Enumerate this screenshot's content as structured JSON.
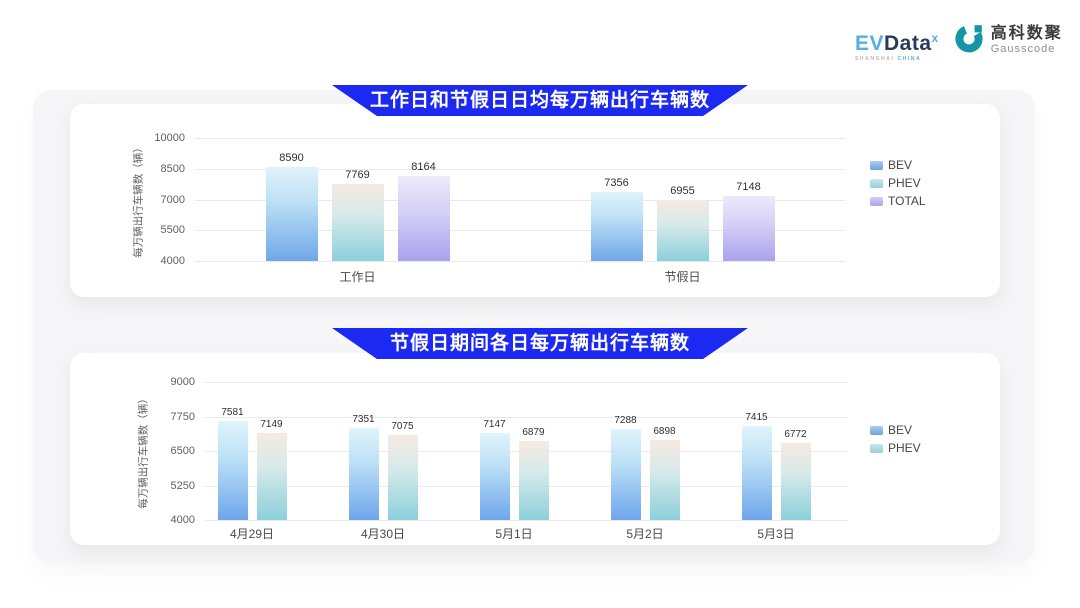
{
  "header": {
    "evdata_logo": {
      "ev": "EV",
      "data": "Data",
      "sup": "x",
      "subtitle_left": "SHANGHAI",
      "subtitle_right": "CHINA"
    },
    "gausscode_logo": {
      "cn": "高科数聚",
      "en": "Gausscode"
    }
  },
  "colors": {
    "banner_blue": "#1b29f2",
    "evdata_blue": "#58aede",
    "evdata_navy": "#2a3c5e",
    "gausscode_teal": "#1596a8",
    "gridline": "#e9e9ec"
  },
  "chart_data": [
    {
      "type": "bar",
      "title": "工作日和节假日日均每万辆出行车辆数",
      "ylabel": "每万辆出行车辆数（辆）",
      "ylim": [
        4000,
        10000
      ],
      "yticks": [
        4000,
        5500,
        7000,
        8500,
        10000
      ],
      "categories": [
        "工作日",
        "节假日"
      ],
      "series": [
        {
          "name": "BEV",
          "values": [
            8590,
            7356
          ],
          "gradient": [
            "#def3fb",
            "#bfe2f4 35%",
            "#6fa7ea"
          ],
          "legend_color": "#74abe8"
        },
        {
          "name": "PHEV",
          "values": [
            7769,
            6955
          ],
          "gradient": [
            "#f7e9e2",
            "#d6eae9 40%",
            "#8bd0db"
          ],
          "legend_color": "#9fd9e0"
        },
        {
          "name": "TOTAL",
          "values": [
            8164,
            7148
          ],
          "gradient": [
            "#edeafa",
            "#d4cef5 45%",
            "#a9a2ef"
          ],
          "legend_color": "#b4adf2"
        }
      ],
      "legend_position": "right",
      "grid": true
    },
    {
      "type": "bar",
      "title": "节假日期间各日每万辆出行车辆数",
      "ylabel": "每万辆出行车辆数（辆）",
      "ylim": [
        4000,
        9000
      ],
      "yticks": [
        4000,
        5250,
        6500,
        7750,
        9000
      ],
      "categories": [
        "4月29日",
        "4月30日",
        "5月1日",
        "5月2日",
        "5月3日"
      ],
      "series": [
        {
          "name": "BEV",
          "values": [
            7581,
            7351,
            7147,
            7288,
            7415
          ],
          "gradient": [
            "#e0f4fb",
            "#bfe2f6 35%",
            "#6ea6ec"
          ],
          "legend_color": "#74abe8"
        },
        {
          "name": "PHEV",
          "values": [
            7149,
            7075,
            6879,
            6898,
            6772
          ],
          "gradient": [
            "#f7e9e2",
            "#d6eae9 40%",
            "#8bd0db"
          ],
          "legend_color": "#9fd9e0"
        }
      ],
      "legend_position": "right",
      "grid": true
    }
  ]
}
